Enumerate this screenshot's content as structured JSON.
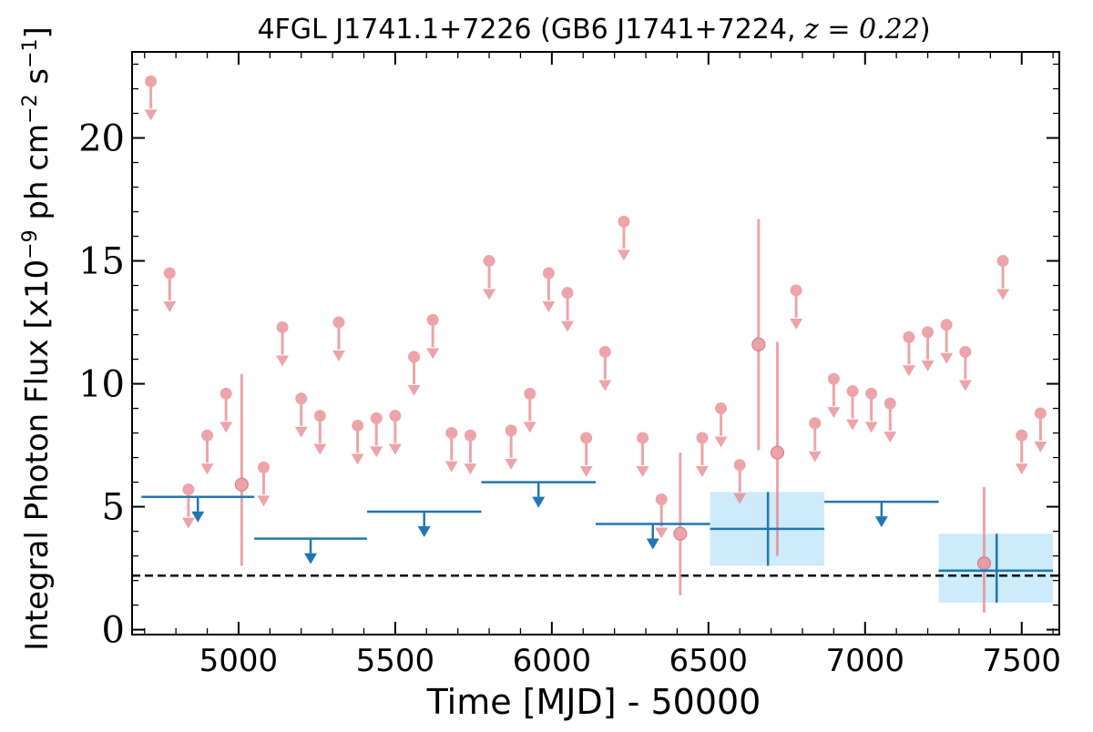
{
  "chart_data": {
    "type": "scatter",
    "title": {
      "prefix": "4FGL J1741.1+7226 (GB6 J1741+7224, ",
      "math": "z = 0.22",
      "suffix": ")"
    },
    "xlabel": "Time [MJD] - 50000",
    "ylabel": {
      "part1": "Integral Photon Flux [x10",
      "exp1": "−9",
      "part2": " ph cm",
      "exp2": "−2",
      "part3": " s",
      "exp3": "−1",
      "part4": "]"
    },
    "xlim": [
      4660,
      7620
    ],
    "ylim": [
      -0.2,
      23.5
    ],
    "xticks": [
      5000,
      5500,
      6000,
      6500,
      7000,
      7500
    ],
    "yticks": [
      0,
      5,
      10,
      15,
      20
    ],
    "reference_line": {
      "y": 2.2,
      "style": "dashed",
      "color": "#000000"
    },
    "series": [
      {
        "binning": "short",
        "color": "#e8868c",
        "upper_limits": [
          {
            "x": 4720,
            "y": 22.3
          },
          {
            "x": 4780,
            "y": 14.5
          },
          {
            "x": 4840,
            "y": 5.7
          },
          {
            "x": 4900,
            "y": 7.9
          },
          {
            "x": 4960,
            "y": 9.6
          },
          {
            "x": 5080,
            "y": 6.6
          },
          {
            "x": 5140,
            "y": 12.3
          },
          {
            "x": 5200,
            "y": 9.4
          },
          {
            "x": 5260,
            "y": 8.7
          },
          {
            "x": 5320,
            "y": 12.5
          },
          {
            "x": 5380,
            "y": 8.3
          },
          {
            "x": 5440,
            "y": 8.6
          },
          {
            "x": 5500,
            "y": 8.7
          },
          {
            "x": 5560,
            "y": 11.1
          },
          {
            "x": 5620,
            "y": 12.6
          },
          {
            "x": 5680,
            "y": 8.0
          },
          {
            "x": 5740,
            "y": 7.9
          },
          {
            "x": 5800,
            "y": 15.0
          },
          {
            "x": 5870,
            "y": 8.1
          },
          {
            "x": 5930,
            "y": 9.6
          },
          {
            "x": 5990,
            "y": 14.5
          },
          {
            "x": 6050,
            "y": 13.7
          },
          {
            "x": 6110,
            "y": 7.8
          },
          {
            "x": 6170,
            "y": 11.3
          },
          {
            "x": 6230,
            "y": 16.6
          },
          {
            "x": 6290,
            "y": 7.8
          },
          {
            "x": 6350,
            "y": 5.3
          },
          {
            "x": 6480,
            "y": 7.8
          },
          {
            "x": 6540,
            "y": 9.0
          },
          {
            "x": 6600,
            "y": 6.7
          },
          {
            "x": 6780,
            "y": 13.8
          },
          {
            "x": 6840,
            "y": 8.4
          },
          {
            "x": 6900,
            "y": 10.2
          },
          {
            "x": 6960,
            "y": 9.7
          },
          {
            "x": 7020,
            "y": 9.6
          },
          {
            "x": 7080,
            "y": 9.2
          },
          {
            "x": 7140,
            "y": 11.9
          },
          {
            "x": 7200,
            "y": 12.1
          },
          {
            "x": 7260,
            "y": 12.4
          },
          {
            "x": 7320,
            "y": 11.3
          },
          {
            "x": 7440,
            "y": 15.0
          },
          {
            "x": 7500,
            "y": 7.9
          },
          {
            "x": 7560,
            "y": 8.8
          }
        ],
        "detections": [
          {
            "x": 5010,
            "y": 5.9,
            "ylo": 2.6,
            "yhi": 10.4
          },
          {
            "x": 6410,
            "y": 3.9,
            "ylo": 1.4,
            "yhi": 7.2
          },
          {
            "x": 6660,
            "y": 11.6,
            "ylo": 7.3,
            "yhi": 16.7
          },
          {
            "x": 6720,
            "y": 7.2,
            "ylo": 3.0,
            "yhi": 11.7
          },
          {
            "x": 7380,
            "y": 2.7,
            "ylo": 0.7,
            "yhi": 5.8
          }
        ]
      },
      {
        "binning": "long",
        "color": "#1f77b4",
        "band_color": "#cdebfa",
        "upper_limits": [
          {
            "x0": 4690,
            "x1": 5050,
            "y": 5.4
          },
          {
            "x0": 5050,
            "x1": 5410,
            "y": 3.7
          },
          {
            "x0": 5410,
            "x1": 5775,
            "y": 4.8
          },
          {
            "x0": 5775,
            "x1": 6140,
            "y": 6.0
          },
          {
            "x0": 6140,
            "x1": 6505,
            "y": 4.3
          },
          {
            "x0": 6870,
            "x1": 7235,
            "y": 5.2
          }
        ],
        "detections": [
          {
            "x0": 6505,
            "x1": 6870,
            "x": 6690,
            "y": 4.1,
            "ylo": 2.6,
            "yhi": 5.6
          },
          {
            "x0": 7235,
            "x1": 7600,
            "x": 7420,
            "y": 2.4,
            "ylo": 1.1,
            "yhi": 3.9
          }
        ]
      }
    ]
  }
}
